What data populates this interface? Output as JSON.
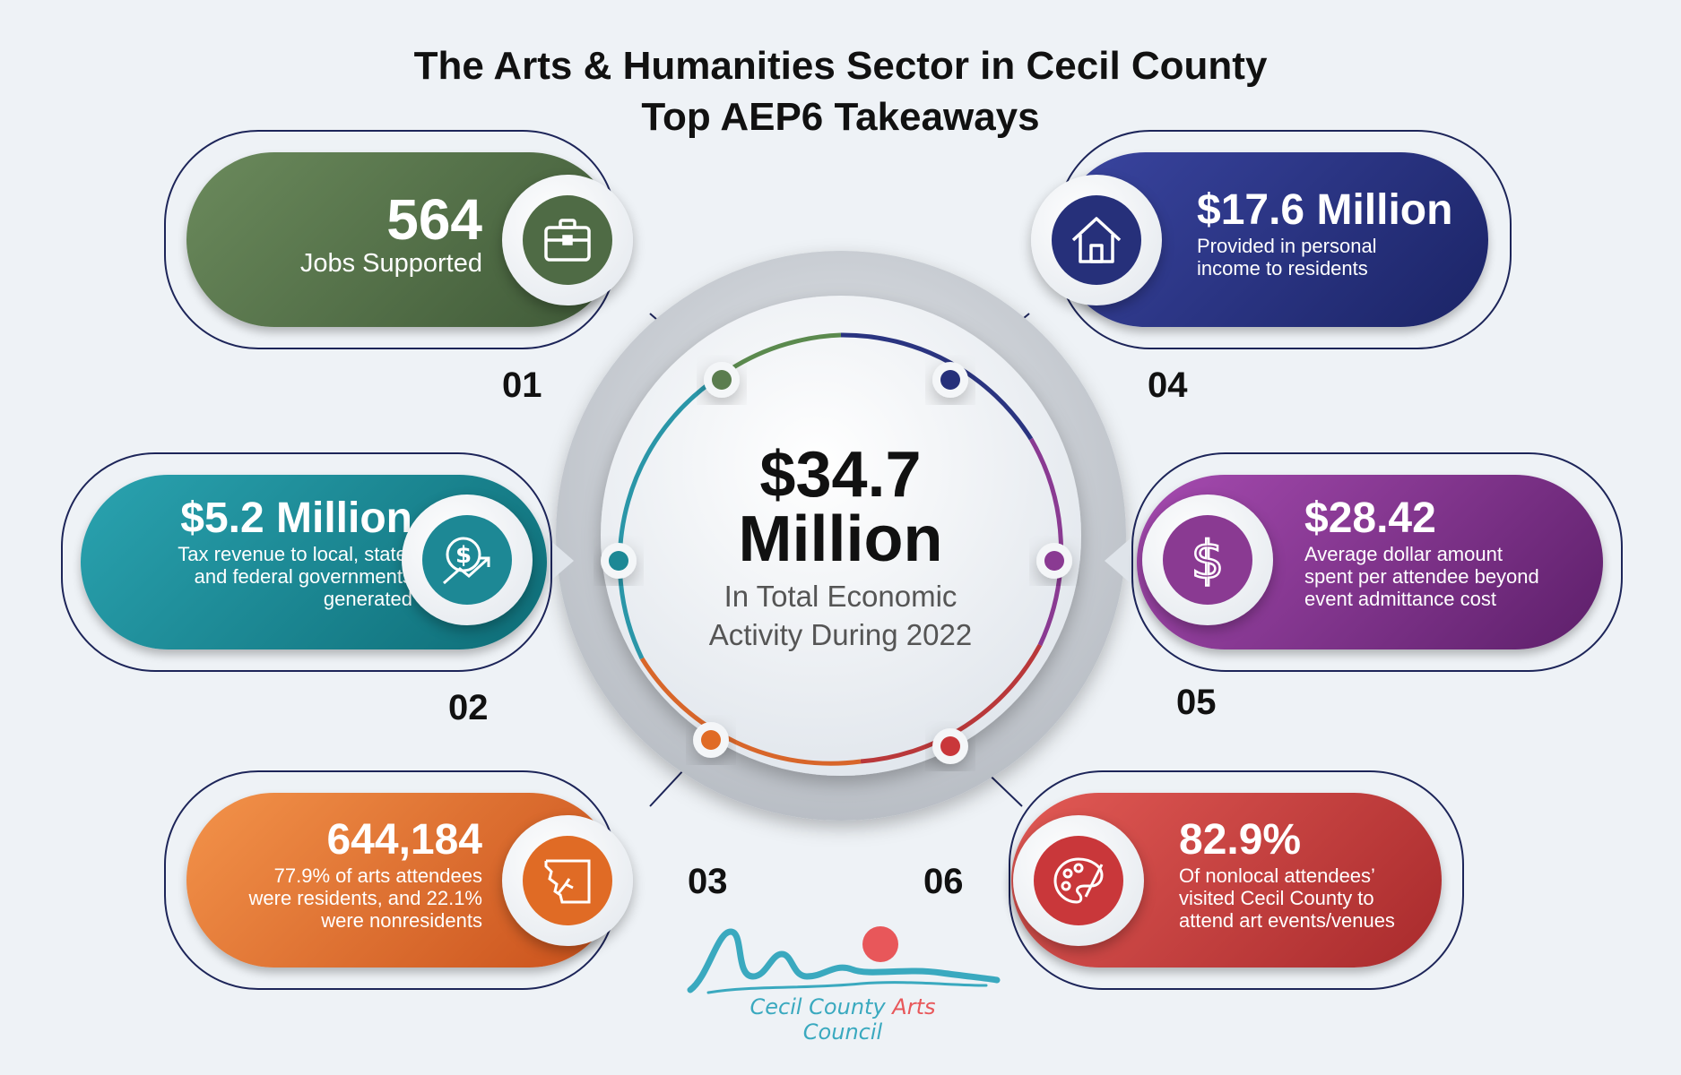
{
  "title": {
    "line1": "The Arts & Humanities Sector in Cecil County",
    "line2": "Top AEP6 Takeaways"
  },
  "center": {
    "value_line1": "$34.7",
    "value_line2": "Million",
    "desc_line1": "In Total Economic",
    "desc_line2": "Activity During 2022"
  },
  "items": [
    {
      "number": "01",
      "value": "564",
      "desc": [
        "Jobs Supported"
      ],
      "icon": "briefcase-icon",
      "color": "#4f6b45"
    },
    {
      "number": "02",
      "value": "$5.2 Million",
      "desc": [
        "Tax revenue to local, state,",
        "and federal governments",
        "generated"
      ],
      "icon": "dollar-growth-icon",
      "color": "#1d8895"
    },
    {
      "number": "03",
      "value": "644,184",
      "desc": [
        "77.9% of arts attendees",
        "were residents, and 22.1%",
        "were nonresidents"
      ],
      "icon": "county-map-icon",
      "color": "#e06b25"
    },
    {
      "number": "04",
      "value": "$17.6 Million",
      "desc": [
        "Provided in personal",
        "income to residents"
      ],
      "icon": "house-icon",
      "color": "#26307a"
    },
    {
      "number": "05",
      "value": "$28.42",
      "desc": [
        "Average dollar amount",
        "spent per attendee beyond",
        "event admittance cost"
      ],
      "icon": "dollar-sign-icon",
      "color": "#7e2d86"
    },
    {
      "number": "06",
      "value": "82.9%",
      "desc": [
        "Of nonlocal attendees’",
        "visited Cecil County to",
        "attend art events/venues"
      ],
      "icon": "palette-icon",
      "color": "#c9373a"
    }
  ],
  "logo": {
    "word1": "Cecil County",
    "word2": "Arts",
    "word3": "Council"
  },
  "colors": {
    "green": "#4f6b45",
    "teal": "#1d8895",
    "orange": "#e06b25",
    "navy": "#26307a",
    "purple": "#7e2d86",
    "red": "#c9373a",
    "logo_teal": "#3aa9bf",
    "logo_coral": "#e8575a"
  }
}
